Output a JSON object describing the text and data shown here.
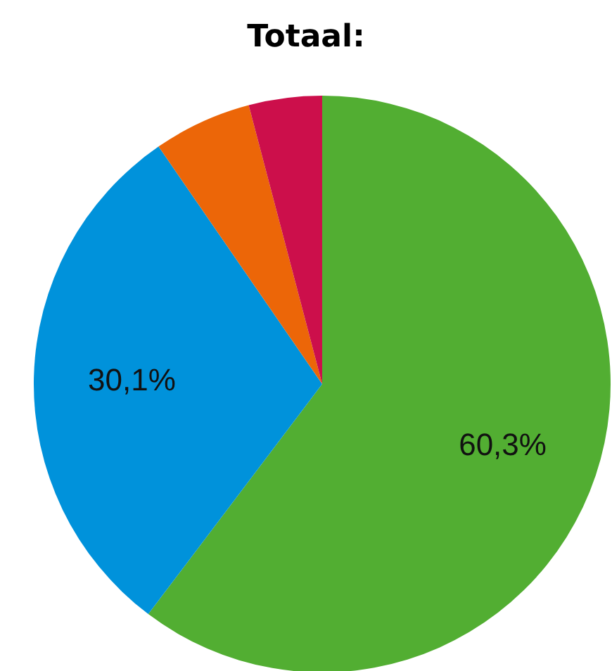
{
  "chart_data": {
    "type": "pie",
    "title": "Totaal:",
    "categories": [
      null,
      null,
      null,
      null
    ],
    "values": [
      60.3,
      30.1,
      5.5,
      4.1
    ],
    "colors": [
      "#52ae32",
      "#0092db",
      "#ec6608",
      "#cc0f4b"
    ],
    "value_labels": [
      "60,3%",
      "30,1%",
      null,
      null
    ],
    "legend": false
  }
}
